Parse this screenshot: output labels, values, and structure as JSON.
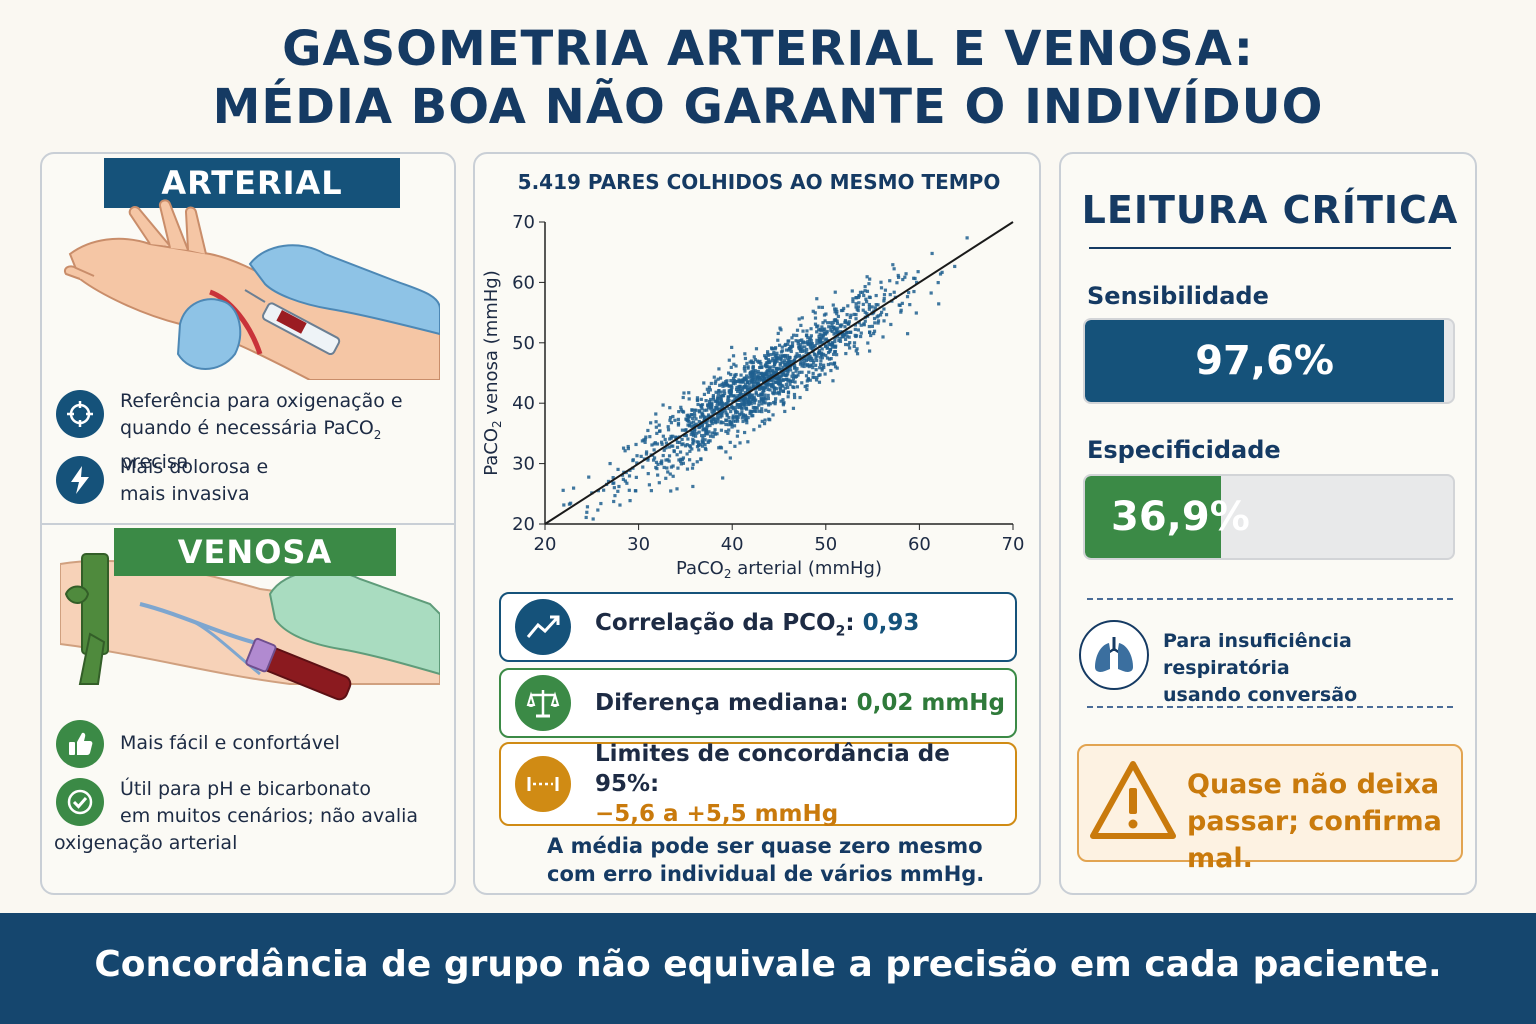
{
  "title": {
    "line1": "GASOMETRIA ARTERIAL E VENOSA:",
    "line2": "MÉDIA BOA NÃO GARANTE O INDIVÍDUO"
  },
  "left_panel": {
    "arterial": {
      "header": "ARTERIAL",
      "features": [
        {
          "icon": "target-icon",
          "line1": "Referência para oxigenação e",
          "line2_prefix": "quando é necessária PaCO",
          "line2_sub": "2",
          "line2_suffix": " precisa"
        },
        {
          "icon": "lightning-icon",
          "line1": "Mais dolorosa e",
          "line2": "mais invasiva"
        }
      ]
    },
    "venosa": {
      "header": "VENOSA",
      "features": [
        {
          "icon": "thumbs-up-icon",
          "line1": "Mais fácil e confortável"
        },
        {
          "icon": "check-circle-icon",
          "line1": "Útil para pH e bicarbonato",
          "line2": "em muitos cenários; não avalia",
          "line3": "oxigenação arterial"
        }
      ]
    }
  },
  "chart_data": {
    "type": "scatter",
    "title": "5.419 PARES COLHIDOS AO MESMO TEMPO",
    "xlabel_prefix": "PaCO",
    "xlabel_sub": "2",
    "xlabel_suffix": " arterial (mmHg)",
    "ylabel_prefix": "PaCO",
    "ylabel_sub": "2",
    "ylabel_suffix": " venosa (mmHg)",
    "xlim": [
      20,
      70
    ],
    "ylim": [
      20,
      70
    ],
    "xticks": [
      "20",
      "30",
      "40",
      "50",
      "60",
      "70"
    ],
    "yticks": [
      "20",
      "30",
      "40",
      "50",
      "60",
      "70"
    ],
    "n_points": 5419,
    "correlation": 0.93,
    "median_difference": 0.02,
    "limits_of_agreement": [
      -5.6,
      5.5
    ],
    "center_mean": 43,
    "center_sd": 7,
    "identity_line": [
      [
        20,
        20
      ],
      [
        70,
        70
      ]
    ],
    "point_color": "#1f5f8f"
  },
  "middle_panel": {
    "stats": [
      {
        "icon": "trend-up-icon",
        "label_prefix": "Correlação da PCO",
        "label_sub": "2",
        "label_suffix": ": ",
        "value": "0,93"
      },
      {
        "icon": "scale-icon",
        "label": "Diferença mediana: ",
        "value": "0,02 mmHg"
      },
      {
        "icon": "range-icon",
        "label": "Limites de concordância de 95%:",
        "value": "−5,6 a +5,5 mmHg"
      }
    ],
    "note_line1": "A média pode ser quase zero mesmo",
    "note_line2": "com erro individual de vários mmHg."
  },
  "right_panel": {
    "title": "LEITURA CRÍTICA",
    "sensitivity": {
      "label": "Sensibilidade",
      "value_text": "97,6%",
      "value": 0.976
    },
    "specificity": {
      "label": "Especificidade",
      "value_text": "36,9%",
      "value": 0.369
    },
    "context_line1": "Para insuficiência respiratória",
    "context_line2": "usando conversão",
    "warning_line1": "Quase não deixa",
    "warning_line2": "passar; confirma mal."
  },
  "footer": "Concordância de grupo não equivale a precisão em cada paciente.",
  "colors": {
    "navy": "#153a63",
    "blue": "#15527a",
    "green": "#3b8a46",
    "orange": "#c97a0c",
    "footer_bg": "#15466e"
  }
}
